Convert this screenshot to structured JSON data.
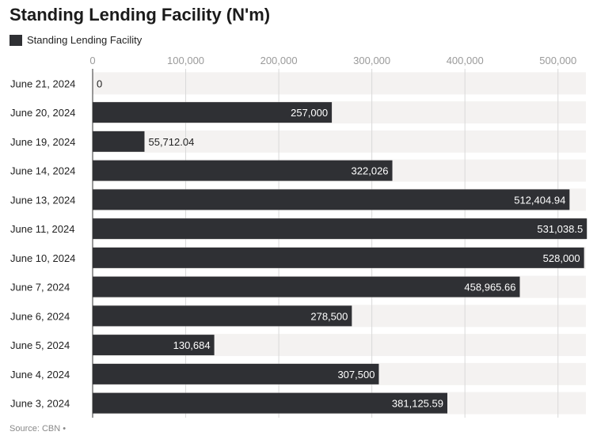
{
  "title": "Standing Lending Facility (N'm)",
  "legend": {
    "label": "Standing Lending Facility"
  },
  "source": "Source: CBN •",
  "colors": {
    "bar": "#2f3034",
    "band": "#f4f2f1",
    "grid": "#d9d9d9",
    "tick": "#9a9a9a",
    "label_light": "#ffffff",
    "label_dark": "#222222"
  },
  "chart_data": {
    "type": "bar",
    "orientation": "horizontal",
    "title": "Standing Lending Facility (N'm)",
    "xlabel": "",
    "ylabel": "",
    "xlim": [
      0,
      530000
    ],
    "x_ticks": [
      0,
      100000,
      200000,
      300000,
      400000,
      500000
    ],
    "x_tick_labels": [
      "0",
      "100,000",
      "200,000",
      "300,000",
      "400,000",
      "500,000"
    ],
    "grid": true,
    "legend_position": "top-left",
    "categories": [
      "June 21, 2024",
      "June 20, 2024",
      "June 19, 2024",
      "June 14, 2024",
      "June 13, 2024",
      "June 11, 2024",
      "June 10, 2024",
      "June 7, 2024",
      "June 6, 2024",
      "June 5, 2024",
      "June 4, 2024",
      "June 3, 2024"
    ],
    "series": [
      {
        "name": "Standing Lending Facility",
        "values": [
          0,
          257000,
          55712.04,
          322026,
          512404.94,
          531038.5,
          528000,
          458965.66,
          278500,
          130684,
          307500,
          381125.59
        ],
        "value_labels": [
          "0",
          "257,000",
          "55,712.04",
          "322,026",
          "512,404.94",
          "531,038.5",
          "528,000",
          "458,965.66",
          "278,500",
          "130,684",
          "307,500",
          "381,125.59"
        ]
      }
    ]
  }
}
